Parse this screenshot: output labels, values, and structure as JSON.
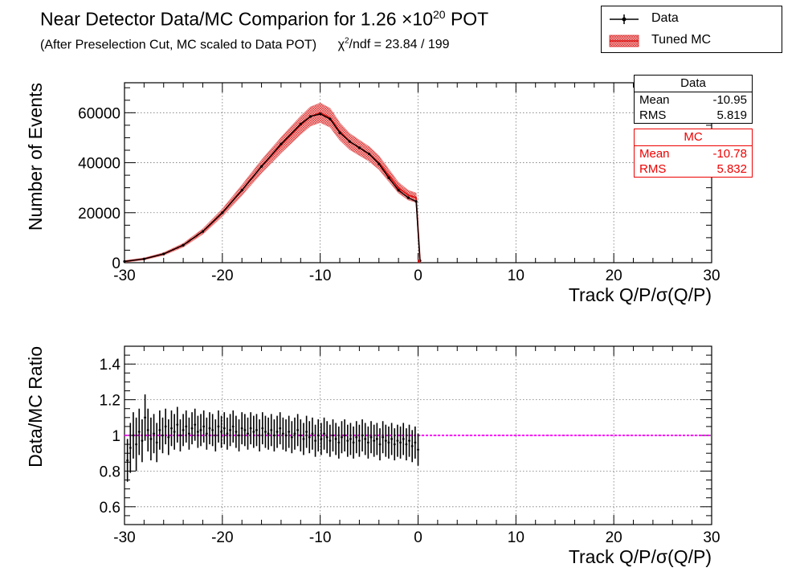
{
  "header": {
    "title": "Near Detector Data/MC Comparion for 1.26",
    "title_exp_base": "×10",
    "title_exp": "20",
    "title_unit": "POT",
    "subtitle": "(After Preselection Cut, MC scaled to Data POT)",
    "chi_prefix": "χ",
    "chi_exp": "2",
    "chi_text": "/ndf = 23.84 / 199"
  },
  "legend": {
    "data_label": "Data",
    "mc_label": "Tuned MC"
  },
  "stats": {
    "data": {
      "title": "Data",
      "mean_label": "Mean",
      "mean": "-10.95",
      "rms_label": "RMS",
      "rms": "5.819"
    },
    "mc": {
      "title": "MC",
      "mean_label": "Mean",
      "mean": "-10.78",
      "rms_label": "RMS",
      "rms": "5.832"
    }
  },
  "colors": {
    "data": "#000000",
    "mc": "#dd1111",
    "mc_band": "#e88080",
    "ratio_line": "#ff00ff"
  },
  "chart_data": [
    {
      "type": "line",
      "title": "Near Detector Data/MC Comparion for 1.26 ×10^20 POT",
      "xlabel": "Track Q/P/σ(Q/P)",
      "ylabel": "Number of Events",
      "xlim": [
        -30,
        30
      ],
      "ylim": [
        0,
        72000
      ],
      "xticks": [
        -30,
        -20,
        -10,
        0,
        10,
        20,
        30
      ],
      "yticks": [
        0,
        20000,
        40000,
        60000
      ],
      "ytick_labels": [
        "0",
        "20000",
        "40000",
        "60000"
      ],
      "grid": true,
      "series": [
        {
          "name": "Data",
          "x": [
            -30,
            -28,
            -26,
            -24,
            -22,
            -20,
            -18,
            -16,
            -14,
            -12,
            -11,
            -10,
            -9,
            -8,
            -7,
            -6,
            -5,
            -4,
            -3,
            -2,
            -1,
            -0.2,
            0.2
          ],
          "y": [
            500,
            1500,
            3500,
            7000,
            12500,
            20000,
            29000,
            38500,
            47500,
            55500,
            58500,
            59500,
            57500,
            52000,
            48500,
            46000,
            43500,
            39500,
            34000,
            29000,
            26000,
            24500,
            800
          ]
        },
        {
          "name": "Tuned MC",
          "x": [
            -30,
            -28,
            -26,
            -24,
            -22,
            -20,
            -18,
            -16,
            -14,
            -12,
            -11,
            -10,
            -9,
            -8,
            -7,
            -6,
            -5,
            -4,
            -3,
            -2,
            -1,
            -0.2,
            0.2
          ],
          "y": [
            500,
            1500,
            3500,
            7000,
            12500,
            20000,
            29000,
            38500,
            47000,
            55000,
            58500,
            60000,
            58000,
            52500,
            48500,
            46000,
            43500,
            40000,
            35000,
            30000,
            27000,
            26000,
            800
          ],
          "band_fraction": 0.06
        }
      ]
    },
    {
      "type": "scatter",
      "xlabel": "Track Q/P/σ(Q/P)",
      "ylabel": "Data/MC Ratio",
      "xlim": [
        -30,
        30
      ],
      "ylim": [
        0.5,
        1.5
      ],
      "xticks": [
        -30,
        -20,
        -10,
        0,
        10,
        20,
        30
      ],
      "yticks": [
        0.6,
        0.8,
        1,
        1.2,
        1.4
      ],
      "ytick_labels": [
        "0.6",
        "0.8",
        "1",
        "1.2",
        "1.4"
      ],
      "grid": true,
      "reference_line": 1,
      "series": [
        {
          "name": "Data/MC",
          "x": [
            -29.7,
            -29.4,
            -29.1,
            -28.8,
            -28.5,
            -28.2,
            -27.9,
            -27.6,
            -27.3,
            -27.0,
            -26.7,
            -26.4,
            -26.1,
            -25.8,
            -25.5,
            -25.2,
            -24.9,
            -24.6,
            -24.3,
            -24.0,
            -23.7,
            -23.4,
            -23.1,
            -22.8,
            -22.5,
            -22.2,
            -21.9,
            -21.6,
            -21.3,
            -21.0,
            -20.7,
            -20.4,
            -20.1,
            -19.8,
            -19.5,
            -19.2,
            -18.9,
            -18.6,
            -18.3,
            -18.0,
            -17.7,
            -17.4,
            -17.1,
            -16.8,
            -16.5,
            -16.2,
            -15.9,
            -15.6,
            -15.3,
            -15.0,
            -14.7,
            -14.4,
            -14.1,
            -13.8,
            -13.5,
            -13.2,
            -12.9,
            -12.6,
            -12.3,
            -12.0,
            -11.7,
            -11.4,
            -11.1,
            -10.8,
            -10.5,
            -10.2,
            -9.9,
            -9.6,
            -9.3,
            -9.0,
            -8.7,
            -8.4,
            -8.1,
            -7.8,
            -7.5,
            -7.2,
            -6.9,
            -6.6,
            -6.3,
            -6.0,
            -5.7,
            -5.4,
            -5.1,
            -4.8,
            -4.5,
            -4.2,
            -3.9,
            -3.6,
            -3.3,
            -3.0,
            -2.7,
            -2.4,
            -2.1,
            -1.8,
            -1.5,
            -1.2,
            -0.9,
            -0.6,
            -0.3,
            0.0
          ],
          "y": [
            0.86,
            0.93,
            1.0,
            0.95,
            1.02,
            0.97,
            1.1,
            1.03,
            0.98,
            1.01,
            0.96,
            1.03,
            1.0,
            1.05,
            0.99,
            1.04,
            1.02,
            1.06,
            1.0,
            1.03,
            1.05,
            1.01,
            1.04,
            1.06,
            1.02,
            1.03,
            1.05,
            1.01,
            1.04,
            1.03,
            1.0,
            1.05,
            1.02,
            1.04,
            1.01,
            1.03,
            1.05,
            1.02,
            1.0,
            1.04,
            1.03,
            1.01,
            1.04,
            1.02,
            1.03,
            1.0,
            1.04,
            1.02,
            1.01,
            1.03,
            1.0,
            1.02,
            1.04,
            1.01,
            1.0,
            1.02,
            0.99,
            1.01,
            1.03,
            1.0,
            0.98,
            1.02,
            0.99,
            1.01,
            0.97,
            1.0,
            0.98,
            1.01,
            0.99,
            0.97,
            1.0,
            0.98,
            0.96,
            0.99,
            1.0,
            0.97,
            0.98,
            0.96,
            0.99,
            0.97,
            1.0,
            0.98,
            0.96,
            0.99,
            0.97,
            0.98,
            0.95,
            0.99,
            0.97,
            0.96,
            0.98,
            0.95,
            0.97,
            0.96,
            0.98,
            0.95,
            0.97,
            0.94,
            0.96,
            0.92
          ],
          "err": [
            0.12,
            0.14,
            0.13,
            0.15,
            0.13,
            0.12,
            0.13,
            0.12,
            0.12,
            0.11,
            0.11,
            0.11,
            0.1,
            0.1,
            0.1,
            0.1,
            0.1,
            0.1,
            0.09,
            0.09,
            0.09,
            0.09,
            0.09,
            0.09,
            0.09,
            0.09,
            0.09,
            0.09,
            0.09,
            0.09,
            0.09,
            0.09,
            0.09,
            0.09,
            0.09,
            0.09,
            0.09,
            0.09,
            0.09,
            0.09,
            0.09,
            0.09,
            0.09,
            0.09,
            0.09,
            0.09,
            0.09,
            0.09,
            0.09,
            0.09,
            0.09,
            0.09,
            0.09,
            0.09,
            0.09,
            0.09,
            0.09,
            0.09,
            0.09,
            0.09,
            0.09,
            0.09,
            0.09,
            0.09,
            0.09,
            0.09,
            0.09,
            0.09,
            0.09,
            0.09,
            0.09,
            0.09,
            0.09,
            0.09,
            0.09,
            0.09,
            0.09,
            0.09,
            0.09,
            0.09,
            0.09,
            0.09,
            0.09,
            0.09,
            0.09,
            0.09,
            0.09,
            0.09,
            0.09,
            0.09,
            0.09,
            0.09,
            0.09,
            0.09,
            0.09,
            0.09,
            0.09,
            0.09,
            0.09,
            0.09
          ]
        }
      ]
    }
  ]
}
